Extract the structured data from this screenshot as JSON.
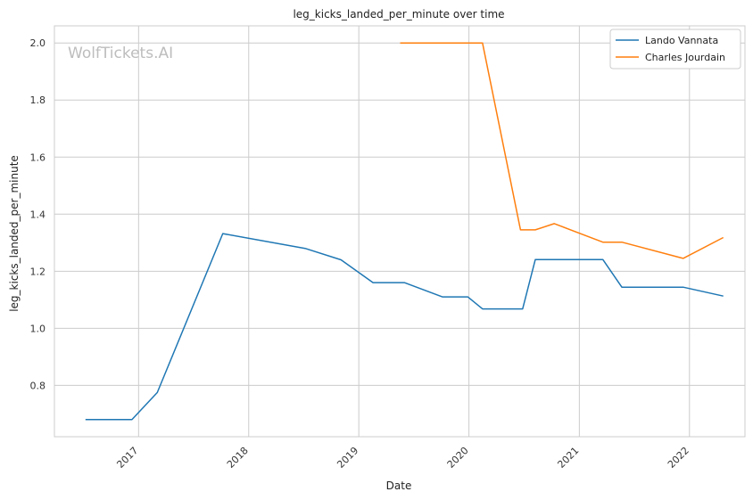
{
  "chart_data": {
    "type": "line",
    "title": "leg_kicks_landed_per_minute over time",
    "xlabel": "Date",
    "ylabel": "leg_kicks_landed_per_minute",
    "watermark": "WolfTickets.AI",
    "x_ticks": [
      "2017",
      "2018",
      "2019",
      "2020",
      "2021",
      "2022"
    ],
    "y_ticks": [
      "0.8",
      "1.0",
      "1.2",
      "1.4",
      "1.6",
      "1.8",
      "2.0"
    ],
    "xlim": [
      "2016-03-28",
      "2022-07-04"
    ],
    "ylim": [
      0.62,
      2.06
    ],
    "grid": true,
    "legend_position": "top-right",
    "series": [
      {
        "name": "Lando Vannata",
        "color": "#1f77b4",
        "points": [
          [
            "2016-07-09",
            0.68
          ],
          [
            "2016-12-10",
            0.68
          ],
          [
            "2017-03-04",
            0.775
          ],
          [
            "2017-10-07",
            1.332
          ],
          [
            "2018-07-07",
            1.28
          ],
          [
            "2018-11-03",
            1.24
          ],
          [
            "2019-02-17",
            1.16
          ],
          [
            "2019-06-01",
            1.16
          ],
          [
            "2019-10-05",
            1.11
          ],
          [
            "2019-12-28",
            1.11
          ],
          [
            "2020-02-15",
            1.068
          ],
          [
            "2020-06-27",
            1.068
          ],
          [
            "2020-08-08",
            1.241
          ],
          [
            "2021-03-20",
            1.241
          ],
          [
            "2021-05-22",
            1.144
          ],
          [
            "2021-12-11",
            1.144
          ],
          [
            "2022-04-23",
            1.113
          ]
        ]
      },
      {
        "name": "Charles Jourdain",
        "color": "#ff7f0e",
        "points": [
          [
            "2019-05-18",
            2.0
          ],
          [
            "2020-02-15",
            2.0
          ],
          [
            "2020-06-20",
            1.345
          ],
          [
            "2020-08-08",
            1.345
          ],
          [
            "2020-10-10",
            1.367
          ],
          [
            "2021-03-20",
            1.302
          ],
          [
            "2021-05-22",
            1.302
          ],
          [
            "2021-12-11",
            1.245
          ],
          [
            "2022-04-23",
            1.318
          ]
        ]
      }
    ]
  }
}
